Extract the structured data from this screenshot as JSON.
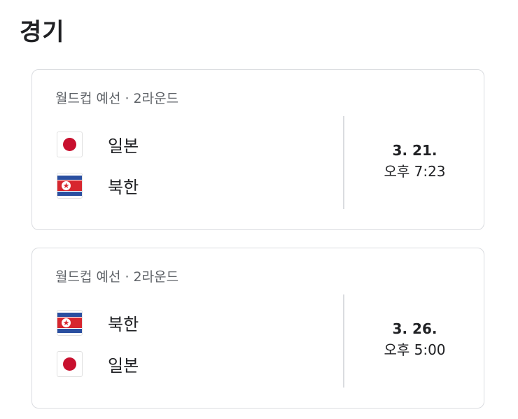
{
  "section": {
    "title": "경기"
  },
  "matches": [
    {
      "competition": "월드컵 예선 · 2라운드",
      "home": {
        "name": "일본",
        "flag": "japan-flag"
      },
      "away": {
        "name": "북한",
        "flag": "north-korea-flag"
      },
      "date": "3. 21.",
      "time": "오후 7:23"
    },
    {
      "competition": "월드컵 예선 · 2라운드",
      "home": {
        "name": "북한",
        "flag": "north-korea-flag"
      },
      "away": {
        "name": "일본",
        "flag": "japan-flag"
      },
      "date": "3. 26.",
      "time": "오후 5:00"
    }
  ],
  "colors": {
    "japan_red": "#c8102e",
    "korea_blue": "#2a4fa0",
    "korea_red": "#d7262e",
    "border": "#dadce0",
    "muted_text": "#5f6368"
  }
}
